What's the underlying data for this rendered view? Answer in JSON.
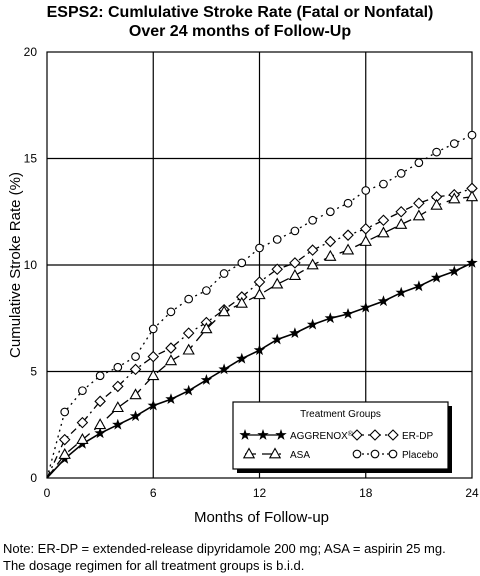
{
  "chart_data": {
    "type": "line",
    "title": "ESPS2: Cumlulative Stroke Rate (Fatal or Nonfatal)",
    "subtitle": "Over 24 months of Follow-Up",
    "xlabel": "Months of Follow-up",
    "ylabel": "Cumulative Stroke Rate (%)",
    "xlim": [
      0,
      24
    ],
    "ylim": [
      0,
      20
    ],
    "xticks": [
      "0",
      "6",
      "12",
      "18",
      "24"
    ],
    "yticks": [
      "0",
      "5",
      "10",
      "15",
      "20"
    ],
    "grid": true,
    "legend": {
      "title": "Treatment Groups",
      "placement": "bottom-right"
    },
    "series": [
      {
        "name": "AGGRENOX",
        "sup": "®",
        "marker": "star",
        "dash": "solid",
        "x": [
          0,
          1,
          2,
          3,
          4,
          5,
          6,
          7,
          8,
          9,
          10,
          11,
          12,
          13,
          14,
          15,
          16,
          17,
          18,
          19,
          20,
          21,
          22,
          23,
          24
        ],
        "y": [
          0,
          0.9,
          1.6,
          2.1,
          2.5,
          2.9,
          3.4,
          3.7,
          4.1,
          4.6,
          5.1,
          5.6,
          6.0,
          6.5,
          6.8,
          7.2,
          7.5,
          7.7,
          8.0,
          8.3,
          8.7,
          9.0,
          9.4,
          9.7,
          10.1
        ]
      },
      {
        "name": "ER-DP",
        "marker": "diamond",
        "dash": "dash-dot",
        "x": [
          0,
          1,
          2,
          3,
          4,
          5,
          6,
          7,
          8,
          9,
          10,
          11,
          12,
          13,
          14,
          15,
          16,
          17,
          18,
          19,
          20,
          21,
          22,
          23,
          24
        ],
        "y": [
          0,
          1.8,
          2.6,
          3.6,
          4.3,
          5.1,
          5.7,
          6.1,
          6.8,
          7.3,
          7.9,
          8.5,
          9.2,
          9.8,
          10.1,
          10.7,
          11.1,
          11.4,
          11.7,
          12.1,
          12.5,
          12.9,
          13.2,
          13.3,
          13.6
        ]
      },
      {
        "name": "ASA",
        "marker": "triangle",
        "dash": "long-dash",
        "x": [
          0,
          1,
          2,
          3,
          4,
          5,
          6,
          7,
          8,
          9,
          10,
          11,
          12,
          13,
          14,
          15,
          16,
          17,
          18,
          19,
          20,
          21,
          22,
          23,
          24
        ],
        "y": [
          0,
          1.1,
          1.8,
          2.5,
          3.3,
          3.9,
          4.8,
          5.5,
          6.0,
          7.0,
          7.8,
          8.2,
          8.6,
          9.1,
          9.5,
          10.0,
          10.4,
          10.7,
          11.1,
          11.5,
          11.9,
          12.3,
          12.8,
          13.1,
          13.2
        ]
      },
      {
        "name": "Placebo",
        "marker": "circle",
        "dash": "dotted",
        "x": [
          0,
          1,
          2,
          3,
          4,
          5,
          6,
          7,
          8,
          9,
          10,
          11,
          12,
          13,
          14,
          15,
          16,
          17,
          18,
          19,
          20,
          21,
          22,
          23,
          24
        ],
        "y": [
          0,
          3.1,
          4.1,
          4.8,
          5.2,
          5.7,
          7.0,
          7.8,
          8.4,
          8.8,
          9.6,
          10.1,
          10.8,
          11.2,
          11.6,
          12.1,
          12.5,
          12.9,
          13.5,
          13.8,
          14.3,
          14.8,
          15.3,
          15.7,
          16.1
        ]
      }
    ]
  },
  "notes": [
    "Note: ER-DP = extended-release dipyridamole 200 mg; ASA = aspirin 25 mg.",
    "The dosage regimen for all treatment groups is b.i.d."
  ]
}
